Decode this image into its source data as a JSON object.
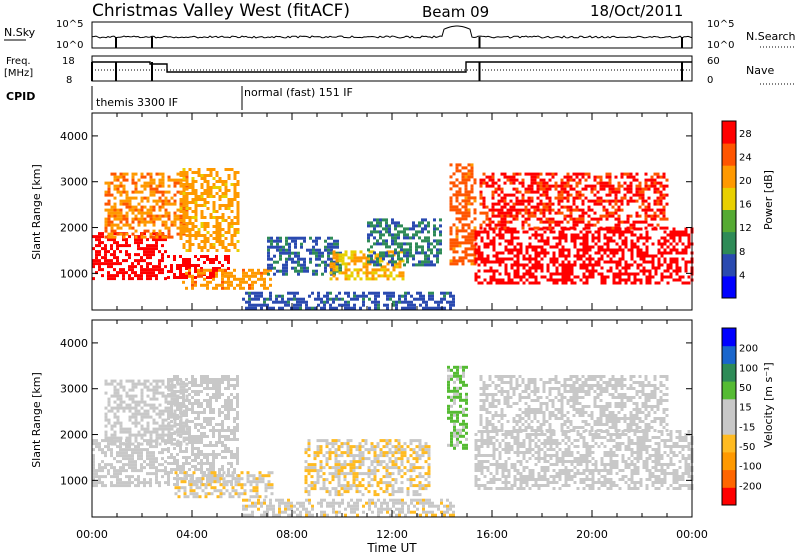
{
  "header": {
    "station": "Christmas Valley West (fitACF)",
    "beam": "Beam 09",
    "date": "18/Oct/2011"
  },
  "top_panels": {
    "nsky_label": "N.Sky",
    "nsky_ticks": [
      "10^5",
      "10^0"
    ],
    "nsearch_label": "N.Search",
    "nsearch_ticks": [
      "10^5",
      "10^0"
    ],
    "freq_label": "Freq.",
    "freq_unit": "[MHz]",
    "freq_ticks": [
      "18",
      "8"
    ],
    "nave_label": "Nave",
    "nave_ticks": [
      "60",
      "0"
    ],
    "cpid_label": "CPID",
    "cpid_segments": [
      {
        "label": "themis 3300 IF",
        "start_hour": 0,
        "end_hour": 6
      },
      {
        "label": "normal (fast) 151 IF",
        "start_hour": 6,
        "end_hour": 24
      }
    ]
  },
  "chart_data": [
    {
      "type": "heatmap",
      "name": "power",
      "ylabel": "Slant Range [km]",
      "xlabel": "Time UT",
      "colorbar_label": "Power [dB]",
      "colorbar_ticks": [
        "4",
        "8",
        "12",
        "16",
        "20",
        "24",
        "28"
      ],
      "colorbar_range": [
        0,
        30
      ],
      "colorbar_colors": [
        "#0000ff",
        "#2a4ab0",
        "#2e8b57",
        "#55aa33",
        "#e8d000",
        "#ff9900",
        "#ff5500",
        "#ff0000"
      ],
      "ylim": [
        200,
        4500
      ],
      "yticks": [
        "1000",
        "2000",
        "3000",
        "4000"
      ],
      "xlim_hours": [
        0,
        24
      ],
      "xticks": [
        "00:00",
        "04:00",
        "08:00",
        "12:00",
        "16:00",
        "20:00",
        "00:00"
      ],
      "regions": [
        {
          "t0": 0,
          "t1": 3,
          "r0": 900,
          "r1": 1900,
          "value": 30
        },
        {
          "t0": 0.5,
          "t1": 3.8,
          "r0": 1800,
          "r1": 3200,
          "value": 22
        },
        {
          "t0": 3,
          "t1": 5.5,
          "r0": 900,
          "r1": 1400,
          "value": 29
        },
        {
          "t0": 3.5,
          "t1": 5.8,
          "r0": 1500,
          "r1": 3300,
          "value": 20
        },
        {
          "t0": 3.6,
          "t1": 7.2,
          "r0": 650,
          "r1": 1100,
          "value": 21
        },
        {
          "t0": 6,
          "t1": 14.5,
          "r0": 250,
          "r1": 600,
          "value": 6
        },
        {
          "t0": 7,
          "t1": 10,
          "r0": 1000,
          "r1": 1800,
          "value": 7
        },
        {
          "t0": 9.5,
          "t1": 12.5,
          "r0": 900,
          "r1": 1500,
          "value": 19
        },
        {
          "t0": 11,
          "t1": 14,
          "r0": 1200,
          "r1": 2200,
          "value": 8
        },
        {
          "t0": 14.3,
          "t1": 15.3,
          "r0": 1200,
          "r1": 3400,
          "value": 24
        },
        {
          "t0": 15.3,
          "t1": 24,
          "r0": 800,
          "r1": 2000,
          "value": 30
        },
        {
          "t0": 15.5,
          "t1": 23,
          "r0": 2000,
          "r1": 3200,
          "value": 27
        }
      ]
    },
    {
      "type": "heatmap",
      "name": "velocity",
      "ylabel": "Slant Range [km]",
      "xlabel": "Time UT",
      "colorbar_label": "Velocity [m s⁻¹]",
      "colorbar_ticks": [
        "200",
        "100",
        "50",
        "15",
        "-15",
        "-50",
        "-100",
        "-200"
      ],
      "colorbar_range": [
        -250,
        250
      ],
      "colorbar_colors": [
        "#ff0000",
        "#ff6600",
        "#ff9900",
        "#ffbb22",
        "#c8c8c8",
        "#c8c8c8",
        "#55bb33",
        "#2e8b57",
        "#1a66cc",
        "#0000ff"
      ],
      "ylim": [
        200,
        4500
      ],
      "yticks": [
        "1000",
        "2000",
        "3000",
        "4000"
      ],
      "xlim_hours": [
        0,
        24
      ],
      "xticks": [
        "00:00",
        "04:00",
        "08:00",
        "12:00",
        "16:00",
        "20:00",
        "00:00"
      ],
      "regions": [
        {
          "t0": 0,
          "t1": 3,
          "r0": 900,
          "r1": 1900,
          "value": 0
        },
        {
          "t0": 0.5,
          "t1": 3.8,
          "r0": 1800,
          "r1": 3200,
          "value": 0
        },
        {
          "t0": 3,
          "t1": 5.8,
          "r0": 900,
          "r1": 3300,
          "value": 0
        },
        {
          "t0": 3.3,
          "t1": 7.2,
          "r0": 650,
          "r1": 1200,
          "value": -40
        },
        {
          "t0": 6,
          "t1": 14.5,
          "r0": 250,
          "r1": 600,
          "value": -30
        },
        {
          "t0": 8.5,
          "t1": 13.5,
          "r0": 700,
          "r1": 1900,
          "value": -45
        },
        {
          "t0": 14.2,
          "t1": 15,
          "r0": 1700,
          "r1": 3500,
          "value": 60
        },
        {
          "t0": 15.3,
          "t1": 24,
          "r0": 800,
          "r1": 2100,
          "value": 0
        },
        {
          "t0": 15.5,
          "t1": 23,
          "r0": 2100,
          "r1": 3300,
          "value": 0
        }
      ]
    }
  ]
}
